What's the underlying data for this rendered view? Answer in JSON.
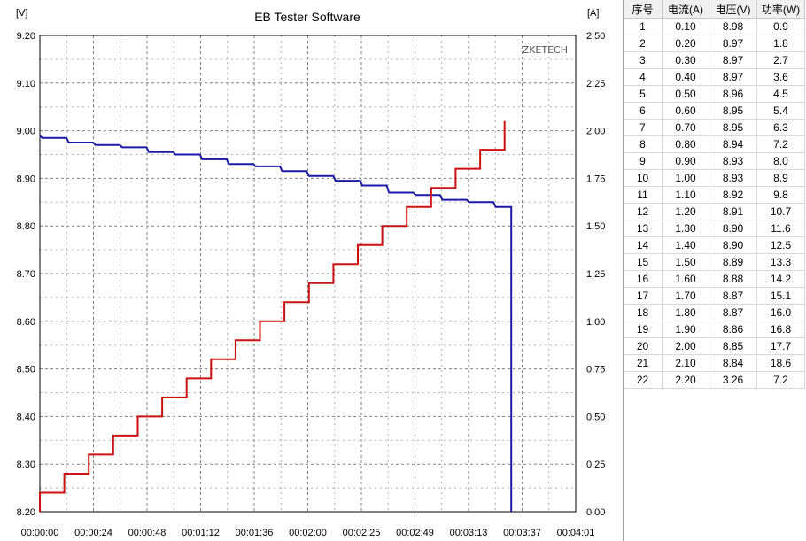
{
  "chart_data": {
    "type": "line",
    "title": "EB Tester Software",
    "watermark_text": "ZKETECH",
    "y_left_unit": "[V]",
    "y_right_unit": "[A]",
    "y_left_ticks": [
      "9.20",
      "9.10",
      "9.00",
      "8.90",
      "8.80",
      "8.70",
      "8.60",
      "8.50",
      "8.40",
      "8.30",
      "8.20"
    ],
    "y_right_ticks": [
      "2.50",
      "2.25",
      "2.00",
      "1.75",
      "1.50",
      "1.25",
      "1.00",
      "0.75",
      "0.50",
      "0.25",
      "0.00"
    ],
    "x_ticks": [
      "00:00:00",
      "00:00:24",
      "00:00:48",
      "00:01:12",
      "00:01:36",
      "00:02:00",
      "00:02:25",
      "00:02:49",
      "00:03:13",
      "00:03:37",
      "00:04:01"
    ],
    "y_left_range": [
      8.2,
      9.2
    ],
    "y_right_range": [
      0.0,
      2.5
    ],
    "x_range_seconds": [
      0,
      241
    ],
    "grid": true,
    "series": [
      {
        "axis": "left",
        "color": "#1a1aa6",
        "x_seconds": [
          0,
          1,
          12,
          13,
          24,
          25,
          36,
          37,
          48,
          49,
          60,
          61,
          72,
          73,
          84,
          85,
          96,
          97,
          108,
          109,
          120,
          121,
          132,
          133,
          144,
          145,
          156,
          157,
          168,
          169,
          180,
          181,
          192,
          193,
          204,
          205,
          212,
          212
        ],
        "values": [
          8.99,
          8.985,
          8.985,
          8.975,
          8.975,
          8.97,
          8.97,
          8.965,
          8.965,
          8.955,
          8.955,
          8.95,
          8.95,
          8.94,
          8.94,
          8.93,
          8.93,
          8.925,
          8.925,
          8.915,
          8.915,
          8.905,
          8.905,
          8.895,
          8.895,
          8.885,
          8.885,
          8.87,
          8.87,
          8.865,
          8.865,
          8.855,
          8.855,
          8.85,
          8.85,
          8.84,
          8.84,
          8.2
        ]
      },
      {
        "axis": "right",
        "color": "#cc1111",
        "x_seconds": [
          0,
          0,
          11,
          11,
          22,
          22,
          33,
          33,
          44,
          44,
          55,
          55,
          66,
          66,
          77,
          77,
          88,
          88,
          99,
          99,
          110,
          110,
          121,
          121,
          132,
          132,
          143,
          143,
          154,
          154,
          165,
          165,
          176,
          176,
          187,
          187,
          198,
          198,
          209,
          209
        ],
        "values": [
          0.0,
          0.1,
          0.1,
          0.2,
          0.2,
          0.3,
          0.3,
          0.4,
          0.4,
          0.5,
          0.5,
          0.6,
          0.6,
          0.7,
          0.7,
          0.8,
          0.8,
          0.9,
          0.9,
          1.0,
          1.0,
          1.1,
          1.1,
          1.2,
          1.2,
          1.3,
          1.3,
          1.4,
          1.4,
          1.5,
          1.5,
          1.6,
          1.6,
          1.7,
          1.7,
          1.8,
          1.8,
          1.9,
          1.9,
          2.05
        ]
      }
    ]
  },
  "table": {
    "headers": [
      "序号",
      "电流(A)",
      "电压(V)",
      "功率(W)"
    ],
    "rows": [
      [
        "1",
        "0.10",
        "8.98",
        "0.9"
      ],
      [
        "2",
        "0.20",
        "8.97",
        "1.8"
      ],
      [
        "3",
        "0.30",
        "8.97",
        "2.7"
      ],
      [
        "4",
        "0.40",
        "8.97",
        "3.6"
      ],
      [
        "5",
        "0.50",
        "8.96",
        "4.5"
      ],
      [
        "6",
        "0.60",
        "8.95",
        "5.4"
      ],
      [
        "7",
        "0.70",
        "8.95",
        "6.3"
      ],
      [
        "8",
        "0.80",
        "8.94",
        "7.2"
      ],
      [
        "9",
        "0.90",
        "8.93",
        "8.0"
      ],
      [
        "10",
        "1.00",
        "8.93",
        "8.9"
      ],
      [
        "11",
        "1.10",
        "8.92",
        "9.8"
      ],
      [
        "12",
        "1.20",
        "8.91",
        "10.7"
      ],
      [
        "13",
        "1.30",
        "8.90",
        "11.6"
      ],
      [
        "14",
        "1.40",
        "8.90",
        "12.5"
      ],
      [
        "15",
        "1.50",
        "8.89",
        "13.3"
      ],
      [
        "16",
        "1.60",
        "8.88",
        "14.2"
      ],
      [
        "17",
        "1.70",
        "8.87",
        "15.1"
      ],
      [
        "18",
        "1.80",
        "8.87",
        "16.0"
      ],
      [
        "19",
        "1.90",
        "8.86",
        "16.8"
      ],
      [
        "20",
        "2.00",
        "8.85",
        "17.7"
      ],
      [
        "21",
        "2.10",
        "8.84",
        "18.6"
      ],
      [
        "22",
        "2.20",
        "3.26",
        "7.2"
      ]
    ]
  }
}
